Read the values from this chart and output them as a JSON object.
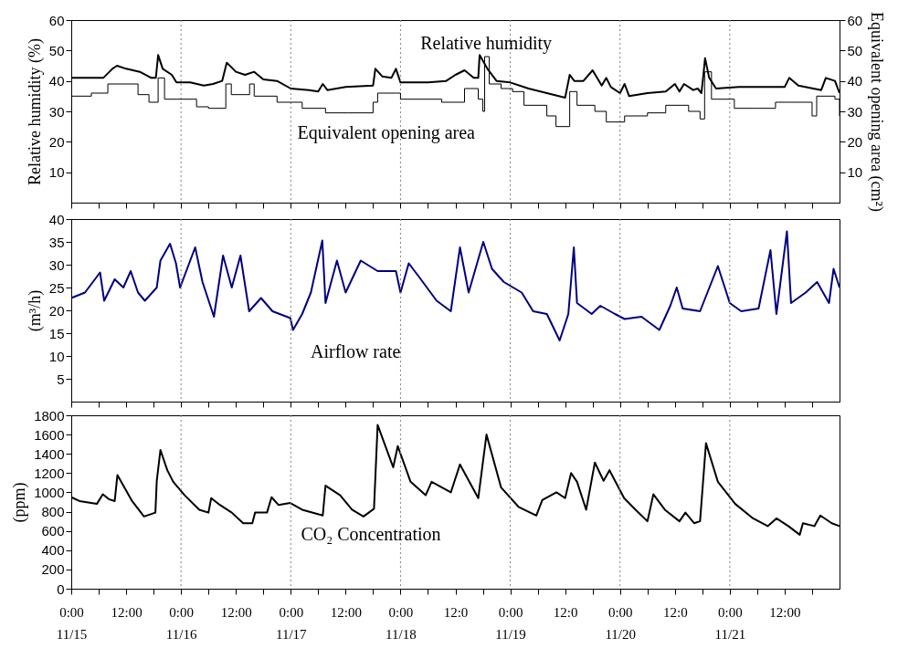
{
  "chart_data": [
    {
      "type": "line",
      "ylabel": "Relative humidity (%)",
      "y2label": "Equivalent opening area (cm²)",
      "tick_labels": "y",
      "xlim": [
        "--11-15T00:00",
        "--11-22T00:00"
      ],
      "ylim": [
        0,
        60
      ],
      "yticks": [
        10,
        20,
        30,
        40,
        50,
        60
      ],
      "y2lim": [
        0,
        60
      ],
      "y2ticks": [
        10,
        20,
        30,
        40,
        50,
        60
      ],
      "xticks": [
        {
          "value": "--11-15T00:00",
          "label": "0:00\n11/15"
        },
        {
          "value": "--11-15T06:00",
          "label": null
        },
        {
          "value": "--11-15T12:00",
          "label": "12:00"
        },
        {
          "value": "--11-15T18:00",
          "label": null
        },
        {
          "value": "--11-16T00:00",
          "label": "0:00\n11/16"
        },
        {
          "value": "--11-16T06:00",
          "label": null
        },
        {
          "value": "--11-16T12:00",
          "label": "12:00"
        },
        {
          "value": "--11-16T18:00",
          "label": null
        },
        {
          "value": "--11-17T00:00",
          "label": "0:00\n11/17"
        },
        {
          "value": "--11-17T06:00",
          "label": null
        },
        {
          "value": "--11-17T12:00",
          "label": "12:00"
        },
        {
          "value": "--11-17T18:00",
          "label": null
        },
        {
          "value": "--11-18T00:00",
          "label": "0:00\n11/18"
        },
        {
          "value": "--11-18T06:00",
          "label": null
        },
        {
          "value": "--11-18T12:00",
          "label": "12:0"
        },
        {
          "value": "--11-18T18:00",
          "label": null
        },
        {
          "value": "--11-19T00:00",
          "label": "0:00\n11/19"
        },
        {
          "value": "--11-19T06:00",
          "label": null
        },
        {
          "value": "--11-19T12:00",
          "label": "12:0"
        },
        {
          "value": "--11-19T18:00",
          "label": null
        },
        {
          "value": "--11-20T00:00",
          "label": "0:00\n11/20"
        },
        {
          "value": "--11-20T06:00",
          "label": null
        },
        {
          "value": "--11-20T12:00",
          "label": "12:0"
        },
        {
          "value": "--11-20T18:00",
          "label": null
        },
        {
          "value": "--11-21T00:00",
          "label": "0:00\n11/21"
        },
        {
          "value": "--11-21T06:00",
          "label": null
        },
        {
          "value": "--11-21T12:00",
          "label": "12:00"
        },
        {
          "value": "--11-21T18:00",
          "label": null
        }
      ],
      "ref_lines": [
        {
          "axis": "x",
          "value": "--11-16T00:00",
          "color": "#808080",
          "line_style": "dotted"
        },
        {
          "axis": "x",
          "value": "--11-17T00:00",
          "color": "#808080",
          "line_style": "dotted"
        },
        {
          "axis": "x",
          "value": "--11-18T00:00",
          "color": "#808080",
          "line_style": "dotted"
        },
        {
          "axis": "x",
          "value": "--11-19T00:00",
          "color": "#808080",
          "line_style": "dotted"
        },
        {
          "axis": "x",
          "value": "--11-20T00:00",
          "color": "#808080",
          "line_style": "dotted"
        },
        {
          "axis": "x",
          "value": "--11-21T00:00",
          "color": "#808080",
          "line_style": "dotted"
        }
      ],
      "annotations": [
        "Relative humidity",
        "Equivalent opening area"
      ],
      "series": [
        {
          "type": "line",
          "color": "#000000",
          "x": [
            "--11-15T00:00",
            "--11-15T07:00",
            "--11-15T09:00",
            "--11-15T10:00",
            "--11-15T12:00",
            "--11-15T15:00",
            "--11-15T17:30",
            "--11-15T18:30",
            "--11-15T19:00",
            "--11-15T20:00",
            "--11-15T22:00",
            "--11-15T23:00",
            "--11-16T02:00",
            "--11-16T05:00",
            "--11-16T07:00",
            "--11-16T09:00",
            "--11-16T10:00",
            "--11-16T12:00",
            "--11-16T14:00",
            "--11-16T16:00",
            "--11-16T18:00",
            "--11-16T21:00",
            "--11-17T00:00",
            "--11-17T04:00",
            "--11-17T06:00",
            "--11-17T07:00",
            "--11-17T08:00",
            "--11-17T12:00",
            "--11-17T18:00",
            "--11-17T18:30",
            "--11-17T20:00",
            "--11-17T22:00",
            "--11-17T23:00",
            "--11-18T00:00",
            "--11-18T06:00",
            "--11-18T10:00",
            "--11-18T12:00",
            "--11-18T14:00",
            "--11-18T16:00",
            "--11-18T17:00",
            "--11-18T17:18",
            "--11-18T19:00",
            "--11-18T21:00",
            "--11-19T00:00",
            "--11-19T04:00",
            "--11-19T08:00",
            "--11-19T12:00",
            "--11-19T13:00",
            "--11-19T14:00",
            "--11-19T16:00",
            "--11-19T18:00",
            "--11-19T20:00",
            "--11-19T21:00",
            "--11-19T22:00",
            "--11-20T00:00",
            "--11-20T01:00",
            "--11-20T02:00",
            "--11-20T06:00",
            "--11-20T10:00",
            "--11-20T12:00",
            "--11-20T13:00",
            "--11-20T14:00",
            "--11-20T16:00",
            "--11-20T17:00",
            "--11-20T17:48",
            "--11-20T18:12",
            "--11-20T18:36",
            "--11-20T19:30",
            "--11-20T21:00",
            "--11-21T02:00",
            "--11-21T08:00",
            "--11-21T12:00",
            "--11-21T13:00",
            "--11-21T15:00",
            "--11-21T20:00",
            "--11-21T21:00",
            "--11-21T23:00",
            "--11-22T00:00"
          ],
          "values": [
            41,
            41,
            44,
            45,
            44,
            43,
            41,
            41,
            48.5,
            44,
            42,
            39.5,
            39.5,
            38.5,
            39,
            40,
            46,
            43,
            42,
            43,
            40.5,
            40,
            37.5,
            37,
            36.5,
            39,
            37,
            38,
            38.5,
            44,
            41.5,
            41,
            44,
            39.5,
            39.5,
            40,
            42,
            43.5,
            41,
            41,
            48.5,
            44,
            40,
            39.5,
            37.5,
            36,
            34.5,
            42,
            40,
            40,
            43.5,
            38.5,
            41,
            38,
            36,
            39,
            35,
            36,
            36.5,
            39,
            36.5,
            39,
            37,
            37.5,
            36,
            41.5,
            47.5,
            41,
            37.5,
            38,
            38,
            38,
            41,
            38.5,
            37,
            41,
            40,
            36
          ]
        },
        {
          "type": "step",
          "axis": "y2",
          "color": "#000000",
          "x": [
            "--11-15T00:00",
            "--11-15T04:24",
            "--11-15T08:00",
            "--11-15T12:00",
            "--11-15T14:36",
            "--11-15T17:00",
            "--11-15T19:00",
            "--11-15T20:24",
            "--11-15T23:00",
            "--11-16T03:24",
            "--11-16T06:00",
            "--11-16T09:48",
            "--11-16T11:00",
            "--11-16T15:00",
            "--11-16T16:00",
            "--11-16T21:00",
            "--11-17T02:30",
            "--11-17T07:36",
            "--11-17T12:42",
            "--11-17T18:00",
            "--11-17T19:00",
            "--11-17T23:00",
            "--11-18T00:00",
            "--11-18T09:00",
            "--11-18T14:00",
            "--11-18T17:00",
            "--11-18T18:00",
            "--11-18T18:24",
            "--11-18T19:24",
            "--11-18T22:00",
            "--11-19T00:30",
            "--11-19T03:00",
            "--11-19T08:00",
            "--11-19T10:00",
            "--11-19T13:00",
            "--11-19T14:36",
            "--11-19T18:30",
            "--11-19T21:00",
            "--11-20T01:00",
            "--11-20T06:00",
            "--11-20T10:00",
            "--11-20T15:00",
            "--11-20T17:30",
            "--11-20T18:30",
            "--11-20T20:00",
            "--11-21T01:00",
            "--11-21T06:00",
            "--11-21T10:00",
            "--11-21T14:00",
            "--11-21T18:00",
            "--11-21T19:00",
            "--11-21T23:00",
            "--11-22T00:00"
          ],
          "values": [
            35,
            36,
            39,
            39,
            35.5,
            33,
            41,
            34,
            34,
            31.5,
            31,
            39,
            35.5,
            39,
            35,
            33,
            31,
            29.5,
            29.5,
            33,
            36,
            36,
            34,
            33,
            37.5,
            34,
            30,
            48,
            39,
            37.5,
            36.5,
            32,
            28.5,
            25,
            36.5,
            32,
            30,
            26.5,
            28.5,
            29.5,
            32,
            30,
            27.5,
            43,
            34,
            31,
            31,
            33,
            33,
            28.5,
            35,
            34,
            28.5
          ]
        }
      ]
    },
    {
      "type": "line",
      "ylabel": "(m³/h)",
      "tick_labels": "y",
      "xlim": [
        "--11-15T00:00",
        "--11-22T00:00"
      ],
      "ylim": [
        0,
        40
      ],
      "yticks": [
        5,
        10,
        15,
        20,
        25,
        30,
        35,
        40
      ],
      "xticks": [
        {
          "value": "--11-15T00:00",
          "label": "0:00\n11/15"
        },
        {
          "value": "--11-15T06:00",
          "label": null
        },
        {
          "value": "--11-15T12:00",
          "label": "12:00"
        },
        {
          "value": "--11-15T18:00",
          "label": null
        },
        {
          "value": "--11-16T00:00",
          "label": "0:00\n11/16"
        },
        {
          "value": "--11-16T06:00",
          "label": null
        },
        {
          "value": "--11-16T12:00",
          "label": "12:00"
        },
        {
          "value": "--11-16T18:00",
          "label": null
        },
        {
          "value": "--11-17T00:00",
          "label": "0:00\n11/17"
        },
        {
          "value": "--11-17T06:00",
          "label": null
        },
        {
          "value": "--11-17T12:00",
          "label": "12:00"
        },
        {
          "value": "--11-17T18:00",
          "label": null
        },
        {
          "value": "--11-18T00:00",
          "label": "0:00\n11/18"
        },
        {
          "value": "--11-18T06:00",
          "label": null
        },
        {
          "value": "--11-18T12:00",
          "label": "12:0"
        },
        {
          "value": "--11-18T18:00",
          "label": null
        },
        {
          "value": "--11-19T00:00",
          "label": "0:00\n11/19"
        },
        {
          "value": "--11-19T06:00",
          "label": null
        },
        {
          "value": "--11-19T12:00",
          "label": "12:0"
        },
        {
          "value": "--11-19T18:00",
          "label": null
        },
        {
          "value": "--11-20T00:00",
          "label": "0:00\n11/20"
        },
        {
          "value": "--11-20T06:00",
          "label": null
        },
        {
          "value": "--11-20T12:00",
          "label": "12:0"
        },
        {
          "value": "--11-20T18:00",
          "label": null
        },
        {
          "value": "--11-21T00:00",
          "label": "0:00\n11/21"
        },
        {
          "value": "--11-21T06:00",
          "label": null
        },
        {
          "value": "--11-21T12:00",
          "label": "12:00"
        },
        {
          "value": "--11-21T18:00",
          "label": null
        }
      ],
      "ref_lines": [
        {
          "axis": "x",
          "value": "--11-16T00:00",
          "color": "#808080",
          "line_style": "dotted"
        },
        {
          "axis": "x",
          "value": "--11-17T00:00",
          "color": "#808080",
          "line_style": "dotted"
        },
        {
          "axis": "x",
          "value": "--11-18T00:00",
          "color": "#808080",
          "line_style": "dotted"
        },
        {
          "axis": "x",
          "value": "--11-19T00:00",
          "color": "#808080",
          "line_style": "dotted"
        },
        {
          "axis": "x",
          "value": "--11-20T00:00",
          "color": "#808080",
          "line_style": "dotted"
        },
        {
          "axis": "x",
          "value": "--11-21T00:00",
          "color": "#808080",
          "line_style": "dotted"
        }
      ],
      "annotations": [
        "Airflow rate"
      ],
      "series": [
        {
          "type": "line",
          "color": "#000080",
          "x": [
            "--11-15T00:00",
            "--11-15T03:00",
            "--11-15T06:18",
            "--11-15T07:12",
            "--11-15T09:30",
            "--11-15T11:24",
            "--11-15T13:00",
            "--11-15T14:36",
            "--11-15T16:06",
            "--11-15T18:42",
            "--11-15T19:30",
            "--11-15T21:36",
            "--11-15T22:54",
            "--11-15T23:48",
            "--11-16T03:06",
            "--11-16T04:42",
            "--11-16T07:12",
            "--11-16T09:12",
            "--11-16T11:06",
            "--11-16T13:00",
            "--11-16T14:54",
            "--11-16T17:30",
            "--11-16T20:00",
            "--11-16T23:54",
            "--11-17T00:30",
            "--11-17T02:30",
            "--11-17T04:24",
            "--11-17T06:54",
            "--11-17T07:36",
            "--11-17T10:06",
            "--11-17T12:00",
            "--11-17T15:18",
            "--11-17T19:00",
            "--11-17T23:00",
            "--11-18T00:00",
            "--11-18T01:48",
            "--11-18T04:00",
            "--11-18T07:54",
            "--11-18T11:00",
            "--11-18T13:00",
            "--11-18T14:54",
            "--11-18T18:06",
            "--11-18T20:00",
            "--11-18T22:36",
            "--11-19T02:30",
            "--11-19T05:00",
            "--11-19T08:00",
            "--11-19T10:48",
            "--11-19T12:42",
            "--11-19T13:54",
            "--11-19T14:36",
            "--11-19T17:48",
            "--11-19T19:42",
            "--11-19T22:54",
            "--11-20T01:00",
            "--11-20T04:42",
            "--11-20T08:36",
            "--11-20T11:00",
            "--11-20T12:24",
            "--11-20T13:42",
            "--11-20T17:30",
            "--11-20T21:24",
            "--11-21T00:00",
            "--11-21T02:30",
            "--11-21T06:18",
            "--11-21T08:54",
            "--11-21T10:12",
            "--11-21T12:30",
            "--11-21T13:24",
            "--11-21T16:36",
            "--11-21T19:06",
            "--11-21T21:42",
            "--11-21T22:42",
            "--11-22T00:00"
          ],
          "values": [
            22.7,
            23.9,
            28.3,
            22.1,
            26.8,
            25,
            28.6,
            23.9,
            22.1,
            25,
            30.9,
            34.6,
            30.3,
            25,
            33.8,
            26.2,
            18.6,
            32,
            25,
            32,
            19.8,
            22.7,
            19.8,
            18.3,
            15.7,
            19.2,
            23.9,
            35.3,
            21.6,
            30.9,
            23.9,
            30.9,
            28.6,
            28.6,
            23.9,
            30.3,
            27.4,
            22.1,
            19.8,
            33.8,
            23.9,
            35,
            29.1,
            26.2,
            23.9,
            19.8,
            19.2,
            13.4,
            19.2,
            33.8,
            21.6,
            19.2,
            21,
            19.2,
            18.1,
            18.6,
            15.7,
            21,
            25,
            20.4,
            19.8,
            29.7,
            21.6,
            19.8,
            20.4,
            33.2,
            19.2,
            37.3,
            21.6,
            23.9,
            26.2,
            21.6,
            29.1,
            25
          ]
        }
      ]
    },
    {
      "type": "line",
      "ylabel": "(ppm)",
      "xlim": [
        "--11-15T00:00",
        "--11-22T00:00"
      ],
      "ylim": [
        0,
        1800
      ],
      "yticks": [
        0,
        200,
        400,
        600,
        800,
        1000,
        1200,
        1400,
        1600,
        1800
      ],
      "xticks": [
        {
          "value": "--11-15T00:00",
          "label": "0:00\n11/15"
        },
        {
          "value": "--11-15T06:00",
          "label": null
        },
        {
          "value": "--11-15T12:00",
          "label": "12:00"
        },
        {
          "value": "--11-15T18:00",
          "label": null
        },
        {
          "value": "--11-16T00:00",
          "label": "0:00\n11/16"
        },
        {
          "value": "--11-16T06:00",
          "label": null
        },
        {
          "value": "--11-16T12:00",
          "label": "12:00"
        },
        {
          "value": "--11-16T18:00",
          "label": null
        },
        {
          "value": "--11-17T00:00",
          "label": "0:00\n11/17"
        },
        {
          "value": "--11-17T06:00",
          "label": null
        },
        {
          "value": "--11-17T12:00",
          "label": "12:00"
        },
        {
          "value": "--11-17T18:00",
          "label": null
        },
        {
          "value": "--11-18T00:00",
          "label": "0:00\n11/18"
        },
        {
          "value": "--11-18T06:00",
          "label": null
        },
        {
          "value": "--11-18T12:00",
          "label": "12:0"
        },
        {
          "value": "--11-18T18:00",
          "label": null
        },
        {
          "value": "--11-19T00:00",
          "label": "0:00\n11/19"
        },
        {
          "value": "--11-19T06:00",
          "label": null
        },
        {
          "value": "--11-19T12:00",
          "label": "12:0"
        },
        {
          "value": "--11-19T18:00",
          "label": null
        },
        {
          "value": "--11-20T00:00",
          "label": "0:00\n11/20"
        },
        {
          "value": "--11-20T06:00",
          "label": null
        },
        {
          "value": "--11-20T12:00",
          "label": "12:0"
        },
        {
          "value": "--11-20T18:00",
          "label": null
        },
        {
          "value": "--11-21T00:00",
          "label": "0:00\n11/21"
        },
        {
          "value": "--11-21T06:00",
          "label": null
        },
        {
          "value": "--11-21T12:00",
          "label": "12:00"
        },
        {
          "value": "--11-21T18:00",
          "label": null
        }
      ],
      "ref_lines": [
        {
          "axis": "x",
          "value": "--11-16T00:00",
          "color": "#808080",
          "line_style": "dotted"
        },
        {
          "axis": "x",
          "value": "--11-17T00:00",
          "color": "#808080",
          "line_style": "dotted"
        },
        {
          "axis": "x",
          "value": "--11-18T00:00",
          "color": "#808080",
          "line_style": "dotted"
        },
        {
          "axis": "x",
          "value": "--11-19T00:00",
          "color": "#808080",
          "line_style": "dotted"
        },
        {
          "axis": "x",
          "value": "--11-20T00:00",
          "color": "#808080",
          "line_style": "dotted"
        },
        {
          "axis": "x",
          "value": "--11-21T00:00",
          "color": "#808080",
          "line_style": "dotted"
        }
      ],
      "annotations": [
        "CO₂ Concentration"
      ],
      "series": [
        {
          "type": "line",
          "color": "#000000",
          "x": [
            "--11-15T00:00",
            "--11-15T01:48",
            "--11-15T05:36",
            "--11-15T06:54",
            "--11-15T08:12",
            "--11-15T09:30",
            "--11-15T10:06",
            "--11-15T13:18",
            "--11-15T15:54",
            "--11-15T18:24",
            "--11-15T18:42",
            "--11-15T19:30",
            "--11-15T21:00",
            "--11-15T22:18",
            "--11-16T00:48",
            "--11-16T04:00",
            "--11-16T06:00",
            "--11-16T06:36",
            "--11-16T08:30",
            "--11-16T11:06",
            "--11-16T13:36",
            "--11-16T15:36",
            "--11-16T16:12",
            "--11-16T18:48",
            "--11-16T19:48",
            "--11-16T21:18",
            "--11-16T23:54",
            "--11-17T02:30",
            "--11-17T07:00",
            "--11-17T07:36",
            "--11-17T10:48",
            "--11-17T13:24",
            "--11-17T15:54",
            "--11-17T18:12",
            "--11-17T19:00",
            "--11-17T22:24",
            "--11-17T23:24",
            "--11-18T02:12",
            "--11-18T05:30",
            "--11-18T06:48",
            "--11-18T11:00",
            "--11-18T13:00",
            "--11-18T17:00",
            "--11-18T18:48",
            "--11-18T22:00",
            "--11-19T01:48",
            "--11-19T05:42",
            "--11-19T07:00",
            "--11-19T10:06",
            "--11-19T12:00",
            "--11-19T13:18",
            "--11-19T14:36",
            "--11-19T16:36",
            "--11-19T18:30",
            "--11-19T20:24",
            "--11-19T21:42",
            "--11-20T00:54",
            "--11-20T03:24",
            "--11-20T06:00",
            "--11-20T07:18",
            "--11-20T09:48",
            "--11-20T13:00",
            "--11-20T14:18",
            "--11-20T16:12",
            "--11-20T17:30",
            "--11-20T18:48",
            "--11-20T21:24",
            "--11-21T01:12",
            "--11-21T05:06",
            "--11-21T08:18",
            "--11-21T10:12",
            "--11-21T12:48",
            "--11-21T15:18",
            "--11-21T16:00",
            "--11-21T18:30",
            "--11-21T19:48",
            "--11-21T22:18",
            "--11-22T00:00"
          ],
          "values": [
            950,
            910,
            880,
            980,
            930,
            910,
            1180,
            910,
            750,
            790,
            1120,
            1440,
            1230,
            1110,
            970,
            820,
            790,
            940,
            870,
            790,
            680,
            680,
            790,
            790,
            950,
            870,
            890,
            820,
            760,
            1070,
            970,
            820,
            750,
            830,
            1700,
            1260,
            1480,
            1110,
            970,
            1110,
            1000,
            1290,
            940,
            1600,
            1050,
            850,
            760,
            920,
            1000,
            940,
            1200,
            1110,
            820,
            1310,
            1120,
            1230,
            940,
            820,
            700,
            980,
            820,
            700,
            790,
            680,
            700,
            1510,
            1110,
            880,
            730,
            650,
            730,
            650,
            560,
            680,
            650,
            760,
            680,
            650
          ]
        }
      ]
    }
  ]
}
